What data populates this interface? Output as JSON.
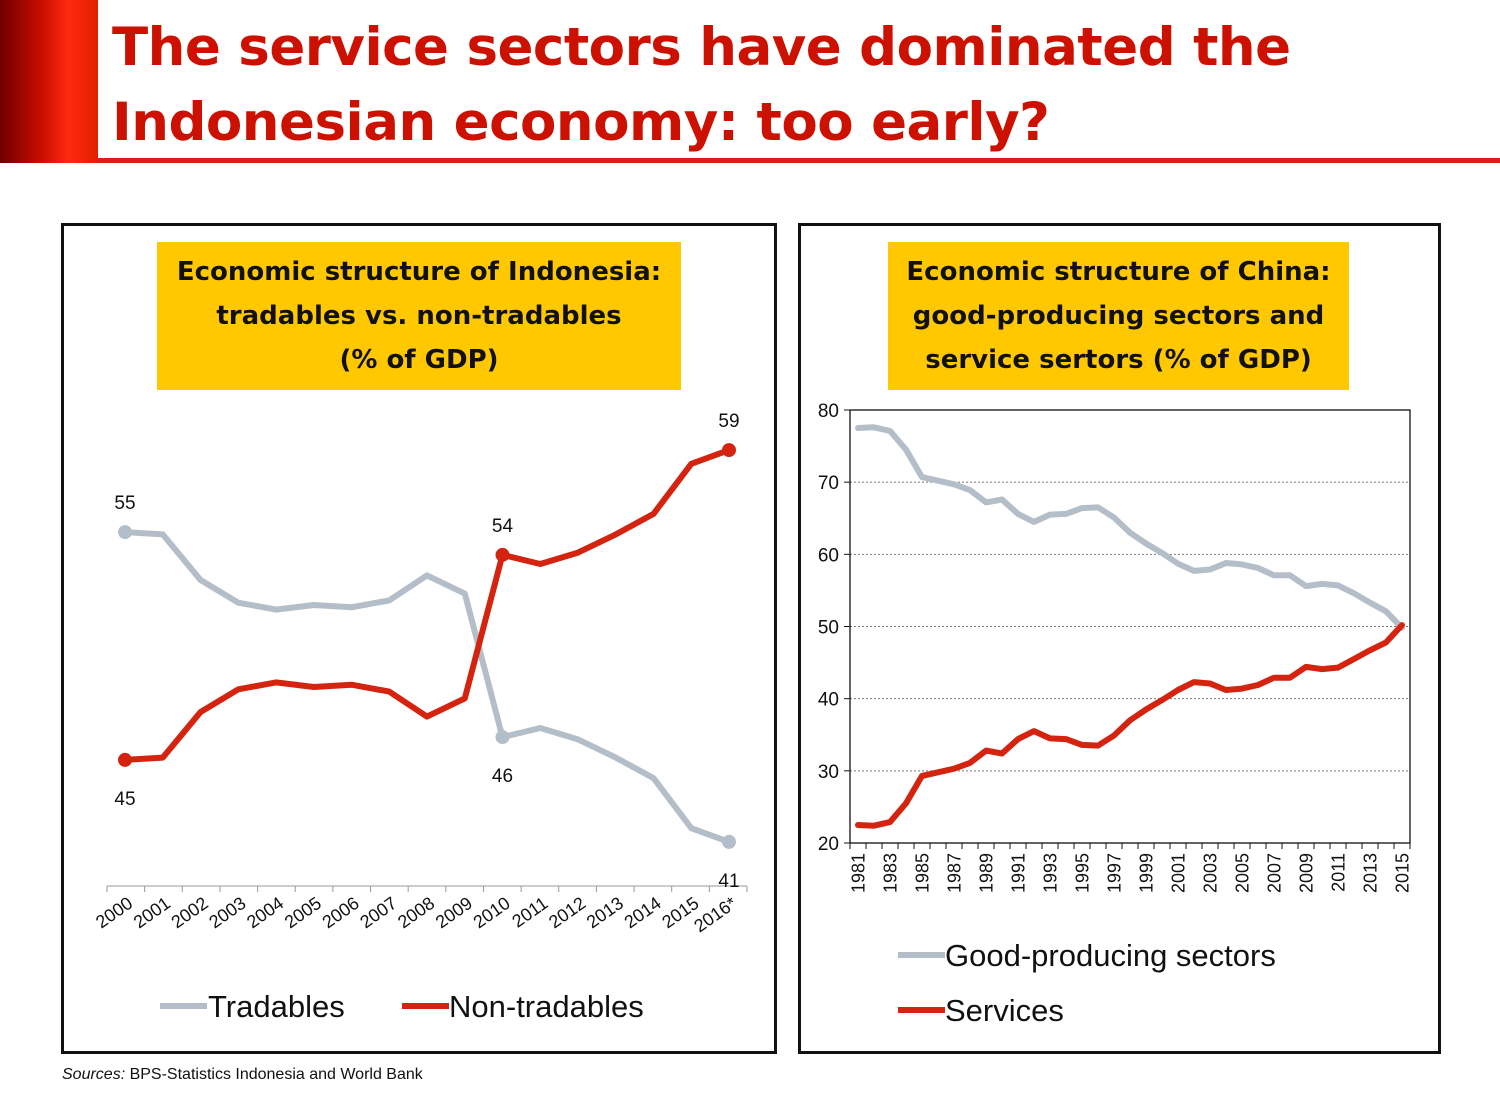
{
  "slide": {
    "title_line1": "The service sectors have dominated the",
    "title_line2": "Indonesian economy: too early?",
    "sources_label": "Sources:",
    "sources_text": " BPS-Statistics Indonesia and World Bank"
  },
  "colors": {
    "title": "#cc1100",
    "tradables": "#b4bec8",
    "non_tradables": "#d42410",
    "title_box": "#ffc800"
  },
  "chart_data": [
    {
      "type": "line",
      "title_lines": [
        "Economic structure of Indonesia:",
        "tradables vs. non-tradables",
        "(% of GDP)"
      ],
      "x": [
        "2000",
        "2001",
        "2002",
        "2003",
        "2004",
        "2005",
        "2006",
        "2007",
        "2008",
        "2009",
        "2010",
        "2011",
        "2012",
        "2013",
        "2014",
        "2015",
        "2016*"
      ],
      "series": [
        {
          "name": "Tradables",
          "color": "#b4bec8",
          "values": [
            55,
            54.9,
            52.9,
            51.9,
            51.6,
            51.8,
            51.7,
            52.0,
            53.1,
            52.3,
            46.0,
            46.4,
            45.9,
            45.1,
            44.2,
            42.0,
            41.4
          ]
        },
        {
          "name": "Non-tradables",
          "color": "#d42410",
          "values": [
            45,
            45.1,
            47.1,
            48.1,
            48.4,
            48.2,
            48.3,
            48.0,
            46.9,
            47.7,
            54.0,
            53.6,
            54.1,
            54.9,
            55.8,
            58.0,
            58.6
          ]
        }
      ],
      "data_labels": [
        {
          "series": 0,
          "index": 0,
          "text": "55",
          "pos": "above"
        },
        {
          "series": 1,
          "index": 0,
          "text": "45",
          "pos": "below"
        },
        {
          "series": 1,
          "index": 10,
          "text": "54",
          "pos": "above"
        },
        {
          "series": 0,
          "index": 10,
          "text": "46",
          "pos": "below"
        },
        {
          "series": 1,
          "index": 16,
          "text": "59",
          "pos": "above"
        },
        {
          "series": 0,
          "index": 16,
          "text": "41",
          "pos": "below"
        }
      ],
      "y_axis_visible": false,
      "legend_position": "bottom"
    },
    {
      "type": "line",
      "title_lines": [
        "Economic structure of China:",
        "good-producing sectors and",
        "service sertors (% of GDP)"
      ],
      "x_start": 1981,
      "x_end": 2015,
      "x_tick_labels": [
        "1981",
        "1983",
        "1985",
        "1987",
        "1989",
        "1991",
        "1993",
        "1995",
        "1997",
        "1999",
        "2001",
        "2003",
        "2005",
        "2007",
        "2009",
        "2011",
        "2013",
        "2015"
      ],
      "ylim": [
        20,
        80
      ],
      "y_ticks": [
        "20",
        "30",
        "40",
        "50",
        "60",
        "70",
        "80"
      ],
      "grid": "horizontal dotted",
      "series": [
        {
          "name": "Good-producing sectors",
          "color": "#b4bec8",
          "values": [
            77.5,
            77.6,
            77.1,
            74.5,
            70.7,
            70.2,
            69.7,
            68.9,
            67.2,
            67.6,
            65.6,
            64.5,
            65.5,
            65.6,
            66.4,
            66.5,
            65.1,
            63.0,
            61.5,
            60.2,
            58.7,
            57.7,
            57.9,
            58.8,
            58.6,
            58.1,
            57.1,
            57.1,
            55.6,
            55.9,
            55.7,
            54.6,
            53.3,
            52.1,
            49.8
          ]
        },
        {
          "name": "Services",
          "color": "#d42410",
          "values": [
            22.5,
            22.4,
            22.9,
            25.5,
            29.3,
            29.8,
            30.3,
            31.1,
            32.8,
            32.4,
            34.4,
            35.5,
            34.5,
            34.4,
            33.6,
            33.5,
            34.9,
            37.0,
            38.5,
            39.8,
            41.2,
            42.3,
            42.1,
            41.2,
            41.4,
            41.9,
            42.9,
            42.9,
            44.4,
            44.1,
            44.3,
            45.5,
            46.7,
            47.8,
            50.2
          ]
        }
      ],
      "legend_position": "bottom"
    }
  ]
}
